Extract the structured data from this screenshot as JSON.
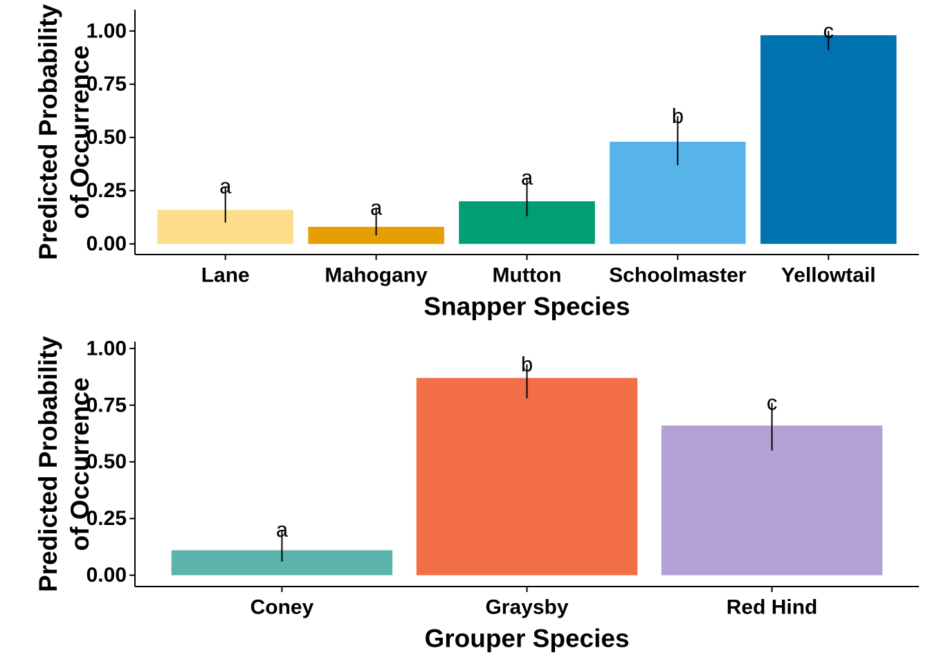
{
  "chart_data": [
    {
      "type": "bar",
      "xlabel": "Snapper Species",
      "ylabel_lines": [
        "Predicted Probability",
        "of Occurrence"
      ],
      "ylim": [
        -0.05,
        1.1
      ],
      "yticks": [
        0.0,
        0.25,
        0.5,
        0.75,
        1.0
      ],
      "ytick_labels": [
        "0.00",
        "0.25",
        "0.50",
        "0.75",
        "1.00"
      ],
      "grid": false,
      "categories": [
        "Lane",
        "Mahogany",
        "Mutton",
        "Schoolmaster",
        "Yellowtail"
      ],
      "values": [
        0.16,
        0.08,
        0.2,
        0.48,
        0.98
      ],
      "error_upper": [
        0.27,
        0.17,
        0.31,
        0.6,
        1.0
      ],
      "error_lower": [
        0.1,
        0.04,
        0.13,
        0.37,
        0.91
      ],
      "significance_letters": [
        "a",
        "a",
        "a",
        "b",
        "c"
      ],
      "colors": [
        "#FDDD89",
        "#E69F00",
        "#009E73",
        "#56B4E9",
        "#0072B2"
      ]
    },
    {
      "type": "bar",
      "xlabel": "Grouper Species",
      "ylabel_lines": [
        "Predicted Probability",
        "of Occurrence"
      ],
      "ylim": [
        -0.05,
        1.03
      ],
      "yticks": [
        0.0,
        0.25,
        0.5,
        0.75,
        1.0
      ],
      "ytick_labels": [
        "0.00",
        "0.25",
        "0.50",
        "0.75",
        "1.00"
      ],
      "grid": false,
      "categories": [
        "Coney",
        "Graysby",
        "Red Hind"
      ],
      "values": [
        0.11,
        0.87,
        0.66
      ],
      "error_upper": [
        0.2,
        0.93,
        0.76
      ],
      "error_lower": [
        0.06,
        0.78,
        0.55
      ],
      "significance_letters": [
        "a",
        "b",
        "c"
      ],
      "colors": [
        "#5BB4AC",
        "#F26E46",
        "#B3A0D4"
      ]
    }
  ]
}
